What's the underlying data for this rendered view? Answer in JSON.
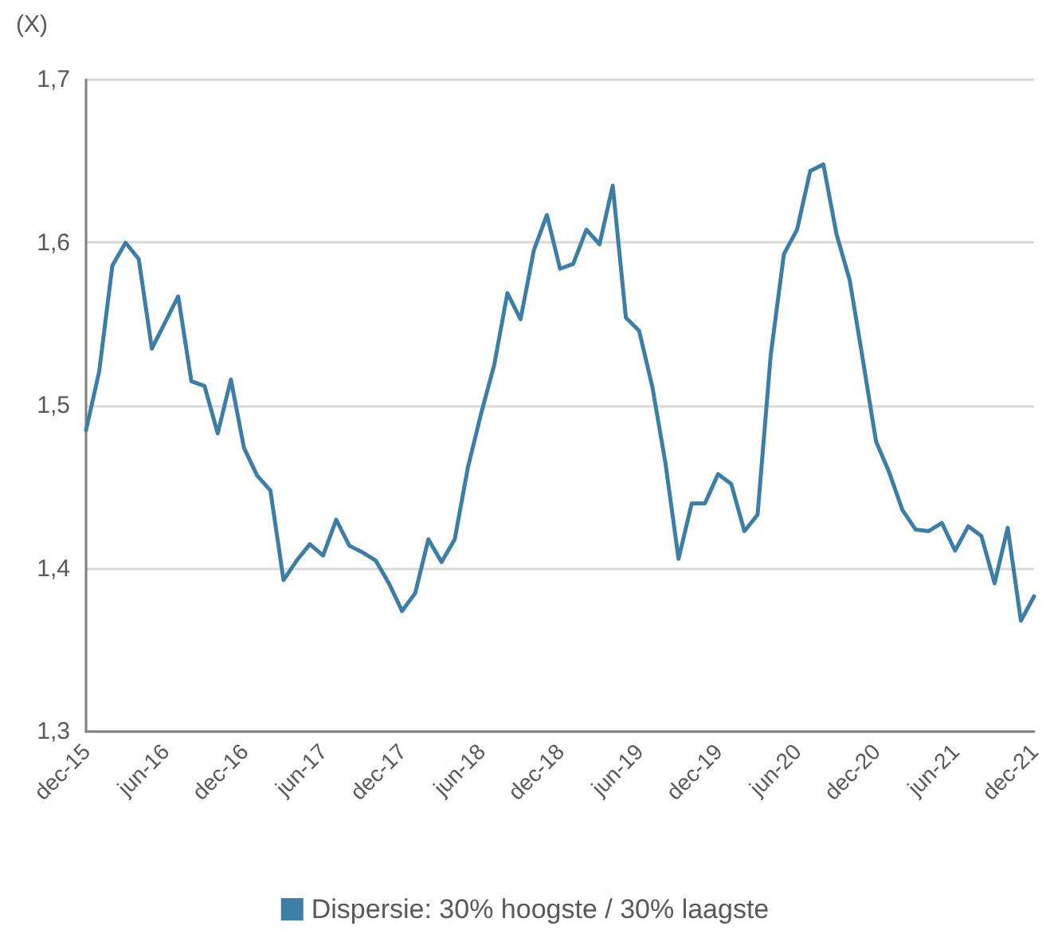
{
  "chart_data": {
    "type": "line",
    "ylabel": "(X)",
    "categories": [
      "dec-15",
      null,
      null,
      null,
      null,
      null,
      "jun-16",
      null,
      null,
      null,
      null,
      null,
      "dec-16",
      null,
      null,
      null,
      null,
      null,
      "jun-17",
      null,
      null,
      null,
      null,
      null,
      "dec-17",
      null,
      null,
      null,
      null,
      null,
      "jun-18",
      null,
      null,
      null,
      null,
      null,
      "dec-18",
      null,
      null,
      null,
      null,
      null,
      "jun-19",
      null,
      null,
      null,
      null,
      null,
      "dec-19",
      null,
      null,
      null,
      null,
      null,
      "jun-20",
      null,
      null,
      null,
      null,
      null,
      "dec-20",
      null,
      null,
      null,
      null,
      null,
      "jun-21",
      null,
      null,
      null,
      null,
      null,
      "dec-21"
    ],
    "series": [
      {
        "name": "Dispersie: 30% hoogste / 30% laagste",
        "color": "#3d7ea6",
        "values": [
          1.485,
          1.521,
          1.586,
          1.6,
          1.59,
          1.535,
          1.551,
          1.567,
          1.515,
          1.512,
          1.483,
          1.516,
          1.474,
          1.457,
          1.448,
          1.393,
          1.405,
          1.415,
          1.408,
          1.43,
          1.414,
          1.41,
          1.405,
          1.391,
          1.374,
          1.385,
          1.418,
          1.404,
          1.418,
          1.462,
          1.495,
          1.525,
          1.569,
          1.553,
          1.595,
          1.617,
          1.584,
          1.587,
          1.608,
          1.599,
          1.635,
          1.554,
          1.546,
          1.512,
          1.465,
          1.406,
          1.44,
          1.44,
          1.458,
          1.452,
          1.423,
          1.433,
          1.531,
          1.593,
          1.608,
          1.644,
          1.648,
          1.605,
          1.577,
          1.528,
          1.478,
          1.459,
          1.436,
          1.424,
          1.423,
          1.428,
          1.411,
          1.426,
          1.42,
          1.391,
          1.425,
          1.368,
          1.383
        ]
      }
    ],
    "ylim": [
      1.3,
      1.7
    ],
    "yticks": [
      {
        "value": 1.3,
        "label": "1,3"
      },
      {
        "value": 1.4,
        "label": "1,4"
      },
      {
        "value": 1.5,
        "label": "1,5"
      },
      {
        "value": 1.6,
        "label": "1,6"
      },
      {
        "value": 1.7,
        "label": "1,7"
      }
    ],
    "grid": "y",
    "legend": "bottom",
    "marker": "none",
    "line_style": "solid"
  }
}
